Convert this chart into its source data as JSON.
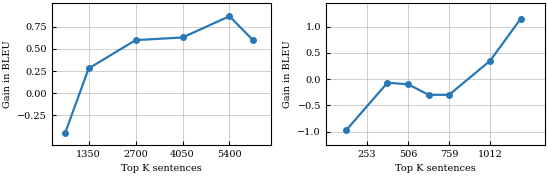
{
  "plot1": {
    "x": [
      675,
      1350,
      2700,
      4050,
      5400,
      6075
    ],
    "y": [
      -0.45,
      0.28,
      0.6,
      0.63,
      0.87,
      0.6
    ],
    "xlabel": "Top K sentences",
    "ylabel": "Gain in BLEU",
    "xticks": [
      1350,
      2700,
      4050,
      5400
    ],
    "yticks": [
      -0.25,
      0,
      0.25,
      0.5,
      0.75
    ],
    "xlim": [
      300,
      6600
    ],
    "ylim": [
      -0.58,
      1.02
    ]
  },
  "plot2": {
    "x": [
      126,
      379,
      506,
      632,
      759,
      1012,
      1200
    ],
    "y": [
      -0.97,
      -0.07,
      -0.1,
      -0.3,
      -0.3,
      0.35,
      1.15
    ],
    "xlabel": "Top K sentences",
    "ylabel": "Gain in BLEU",
    "xticks": [
      253,
      506,
      759,
      1012
    ],
    "yticks": [
      -1.0,
      -0.5,
      0,
      0.5,
      1.0
    ],
    "xlim": [
      0,
      1350
    ],
    "ylim": [
      -1.25,
      1.45
    ]
  },
  "line_color": "#2878b5",
  "marker": "o",
  "markersize": 4,
  "linewidth": 1.6
}
